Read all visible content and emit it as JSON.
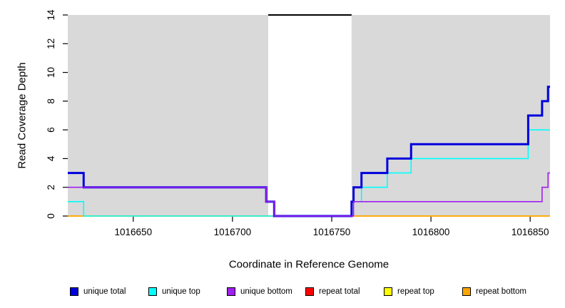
{
  "figure": {
    "x_axis_title": "Coordinate in Reference Genome",
    "y_axis_title": "Read Coverage Depth"
  },
  "chart_data": {
    "type": "line",
    "subtype": "step",
    "title": "",
    "xlabel": "Coordinate in Reference Genome",
    "ylabel": "Read Coverage Depth",
    "xlim": [
      1016617,
      1016860
    ],
    "ylim": [
      0,
      14
    ],
    "x_ticks": [
      1016650,
      1016700,
      1016750,
      1016800,
      1016850
    ],
    "y_ticks": [
      0,
      2,
      4,
      6,
      8,
      10,
      12,
      14
    ],
    "grid": false,
    "plot_bg_color": "#d9d9d9",
    "masked_region": {
      "start": 1016718,
      "end": 1016760,
      "fill": "#ffffff",
      "top_border_color": "#000000"
    },
    "legend_position": "bottom",
    "series": [
      {
        "name": "unique total",
        "color": "#0000dd",
        "width": 3,
        "steps": [
          [
            1016617,
            3
          ],
          [
            1016625,
            2
          ],
          [
            1016717,
            1
          ],
          [
            1016721,
            0
          ],
          [
            1016760,
            1
          ],
          [
            1016761,
            2
          ],
          [
            1016765,
            3
          ],
          [
            1016778,
            4
          ],
          [
            1016790,
            5
          ],
          [
            1016849,
            7
          ],
          [
            1016856,
            8
          ],
          [
            1016859,
            9
          ]
        ]
      },
      {
        "name": "unique top",
        "color": "#00ffff",
        "width": 1.6,
        "steps": [
          [
            1016617,
            1
          ],
          [
            1016625,
            0
          ],
          [
            1016760,
            1
          ],
          [
            1016765,
            2
          ],
          [
            1016778,
            3
          ],
          [
            1016790,
            4
          ],
          [
            1016849,
            6
          ]
        ]
      },
      {
        "name": "unique bottom",
        "color": "#a020f0",
        "width": 1.6,
        "steps": [
          [
            1016617,
            2
          ],
          [
            1016717,
            1
          ],
          [
            1016721,
            0
          ],
          [
            1016761,
            1
          ],
          [
            1016856,
            2
          ],
          [
            1016859,
            3
          ]
        ]
      },
      {
        "name": "repeat total",
        "color": "#ff0000",
        "width": 1.6,
        "steps": [
          [
            1016617,
            0
          ]
        ]
      },
      {
        "name": "repeat top",
        "color": "#ffff00",
        "width": 1.6,
        "steps": [
          [
            1016617,
            0
          ]
        ]
      },
      {
        "name": "repeat bottom",
        "color": "#ffa500",
        "width": 1.6,
        "steps": [
          [
            1016617,
            0
          ]
        ]
      }
    ],
    "draw_order": [
      "repeat total",
      "repeat top",
      "repeat bottom",
      "unique top",
      "unique total",
      "unique bottom"
    ]
  },
  "legend": {
    "items": [
      {
        "label": "unique total",
        "color": "#0000dd"
      },
      {
        "label": "unique top",
        "color": "#00ffff"
      },
      {
        "label": "unique bottom",
        "color": "#a020f0"
      },
      {
        "label": "repeat total",
        "color": "#ff0000"
      },
      {
        "label": "repeat top",
        "color": "#ffff00"
      },
      {
        "label": "repeat bottom",
        "color": "#ffa500"
      }
    ]
  }
}
